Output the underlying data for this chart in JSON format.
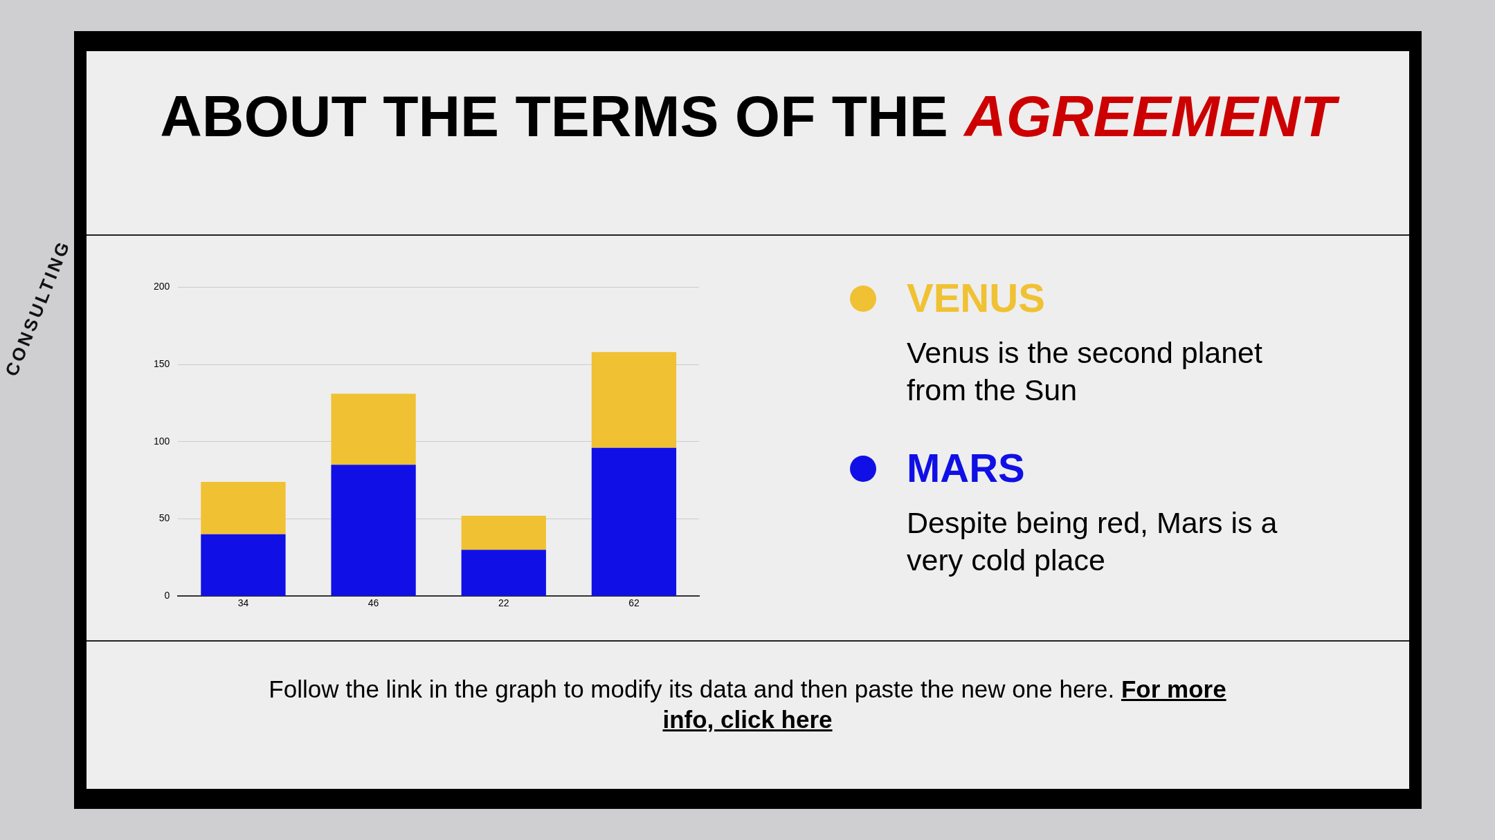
{
  "chart_data": {
    "type": "bar",
    "title": "ABOUT THE TERMS OF THE AGREEMENT",
    "categories": [
      "34",
      "46",
      "22",
      "62"
    ],
    "series": [
      {
        "name": "MARS",
        "color": "#1010e6",
        "values": [
          40,
          85,
          30,
          96
        ]
      },
      {
        "name": "VENUS",
        "color": "#f0c132",
        "values": [
          34,
          46,
          22,
          62
        ]
      }
    ],
    "stacked": true,
    "ylim": [
      0,
      200
    ],
    "yticks": [
      0,
      50,
      100,
      150,
      200
    ],
    "grid": "y",
    "legend": "right",
    "annotations": [
      "Venus is the second planet from the Sun",
      "Despite being red, Mars is a very cold place",
      "Follow the link in the graph to modify its data and then paste the new one here.",
      "For more info, click here",
      "CONSULTING"
    ]
  }
}
